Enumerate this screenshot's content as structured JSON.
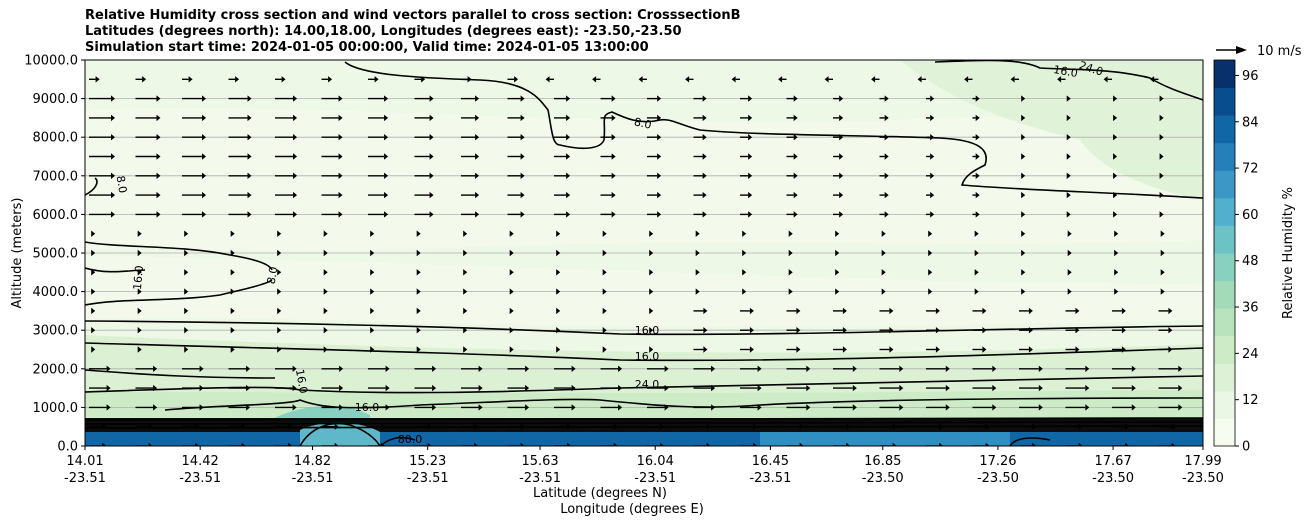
{
  "chart_data": {
    "type": "heatmap",
    "title_lines": [
      "Relative Humidity cross section and wind vectors parallel to cross section: CrosssectionB",
      "Latitudes (degrees north): 14.00,18.00, Longitudes (degrees east): -23.50,-23.50",
      "Simulation start time: 2024-01-05 00:00:00, Valid time: 2024-01-05 13:00:00"
    ],
    "ylabel": "Altitude (meters)",
    "xlabel_lat": "Latitude (degrees N)",
    "xlabel_lon": "Longitude (degrees E)",
    "ylim": [
      0,
      10000
    ],
    "y_ticks": [
      "0.0",
      "1000.0",
      "2000.0",
      "3000.0",
      "4000.0",
      "5000.0",
      "6000.0",
      "7000.0",
      "8000.0",
      "9000.0",
      "10000.0"
    ],
    "x_ticks": [
      {
        "lat": "14.01",
        "lon": "-23.51"
      },
      {
        "lat": "14.42",
        "lon": "-23.51"
      },
      {
        "lat": "14.82",
        "lon": "-23.51"
      },
      {
        "lat": "15.23",
        "lon": "-23.51"
      },
      {
        "lat": "15.63",
        "lon": "-23.51"
      },
      {
        "lat": "16.04",
        "lon": "-23.51"
      },
      {
        "lat": "16.45",
        "lon": "-23.51"
      },
      {
        "lat": "16.85",
        "lon": "-23.50"
      },
      {
        "lat": "17.26",
        "lon": "-23.50"
      },
      {
        "lat": "17.67",
        "lon": "-23.50"
      },
      {
        "lat": "17.99",
        "lon": "-23.50"
      }
    ],
    "xlim": [
      14.01,
      17.99
    ],
    "grid": "horizontal",
    "colorbar": {
      "label": "Relative Humidity %",
      "ticks": [
        "0",
        "12",
        "24",
        "36",
        "48",
        "60",
        "72",
        "84",
        "96"
      ],
      "range": [
        0,
        100
      ],
      "colors": [
        "#f7fcf0",
        "#eaf7e4",
        "#dcf1d6",
        "#cdebc6",
        "#b9e3bd",
        "#a3dab8",
        "#88d0bf",
        "#6cc3c6",
        "#52b0cf",
        "#3b98c6",
        "#2580ba",
        "#1167a6",
        "#084d8d",
        "#08306b"
      ]
    },
    "quiver_key": "10 m/s",
    "contour_labels": [
      "8.0",
      "16.0",
      "24.0",
      "8.0",
      "16.0",
      "8.0",
      "16.0",
      "16.0",
      "24.0",
      "16.0",
      "16.0",
      "80.0"
    ]
  }
}
